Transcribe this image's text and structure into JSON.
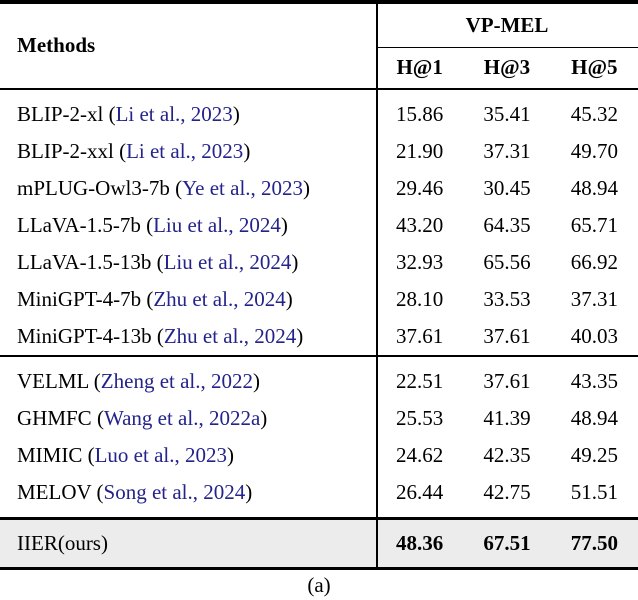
{
  "page": {
    "caption": "(a)"
  },
  "table": {
    "header": {
      "methods_label": "Methods",
      "group_label": "VP-MEL",
      "metric_columns": [
        "H@1",
        "H@3",
        "H@5"
      ]
    },
    "sections": [
      {
        "rows": [
          {
            "method": "BLIP-2-xl",
            "citation": "Li et al., 2023",
            "values": [
              "15.86",
              "35.41",
              "45.32"
            ]
          },
          {
            "method": "BLIP-2-xxl",
            "citation": "Li et al., 2023",
            "values": [
              "21.90",
              "37.31",
              "49.70"
            ]
          },
          {
            "method": "mPLUG-Owl3-7b",
            "citation": "Ye et al., 2023",
            "values": [
              "29.46",
              "30.45",
              "48.94"
            ]
          },
          {
            "method": "LLaVA-1.5-7b",
            "citation": "Liu et al., 2024",
            "values": [
              "43.20",
              "64.35",
              "65.71"
            ]
          },
          {
            "method": "LLaVA-1.5-13b",
            "citation": "Liu et al., 2024",
            "values": [
              "32.93",
              "65.56",
              "66.92"
            ]
          },
          {
            "method": "MiniGPT-4-7b",
            "citation": "Zhu et al., 2024",
            "values": [
              "28.10",
              "33.53",
              "37.31"
            ]
          },
          {
            "method": "MiniGPT-4-13b",
            "citation": "Zhu et al., 2024",
            "values": [
              "37.61",
              "37.61",
              "40.03"
            ]
          }
        ]
      },
      {
        "rows": [
          {
            "method": "VELML",
            "citation": "Zheng et al., 2022",
            "values": [
              "22.51",
              "37.61",
              "43.35"
            ]
          },
          {
            "method": "GHMFC",
            "citation": "Wang et al., 2022a",
            "values": [
              "25.53",
              "41.39",
              "48.94"
            ]
          },
          {
            "method": "MIMIC",
            "citation": "Luo et al., 2023",
            "values": [
              "24.62",
              "42.35",
              "49.25"
            ]
          },
          {
            "method": "MELOV",
            "citation": "Song et al., 2024",
            "values": [
              "26.44",
              "42.75",
              "51.51"
            ]
          }
        ]
      }
    ],
    "highlight_row": {
      "method": "IIER(ours)",
      "citation": null,
      "values": [
        "48.36",
        "67.51",
        "77.50"
      ]
    }
  },
  "colors": {
    "citation_blue": "#23238b",
    "highlight_bg": "#ececec",
    "rule_black": "#000000"
  }
}
